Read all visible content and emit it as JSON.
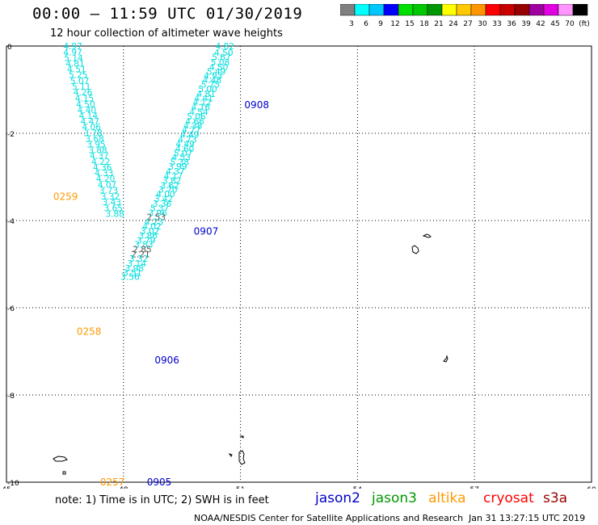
{
  "title": "00:00 – 11:59 UTC 01/30/2019",
  "subtitle": "12 hour collection of altimeter wave heights",
  "color_scale": {
    "colors": [
      "#808080",
      "#00ffff",
      "#00c8ff",
      "#0000ff",
      "#00e000",
      "#00c800",
      "#009600",
      "#ffff00",
      "#ffc800",
      "#ff9600",
      "#ff0000",
      "#c80000",
      "#960000",
      "#a000a0",
      "#e000e0",
      "#ff96ff",
      "#000000"
    ],
    "labels": [
      "3",
      "6",
      "9",
      "12",
      "15",
      "18",
      "21",
      "24",
      "27",
      "30",
      "33",
      "36",
      "39",
      "42",
      "45",
      "70",
      "(ft)"
    ]
  },
  "chart_data": {
    "type": "scatter",
    "title": "00:00 – 11:59 UTC 01/30/2019",
    "xlim": [
      45,
      60
    ],
    "ylim": [
      -10,
      0
    ],
    "x_ticks": [
      "45",
      "48",
      "51",
      "54",
      "57",
      "60"
    ],
    "y_ticks": [
      "0",
      "-2",
      "-4",
      "-6",
      "-8",
      "-10"
    ],
    "grid": true,
    "units": "ft",
    "series": [
      {
        "name": "jason2",
        "color": "#00dddd",
        "points": [
          {
            "x": 50.6,
            "y": 0.0,
            "v": "4.82"
          },
          {
            "x": 50.57,
            "y": -0.15,
            "v": "4.50"
          },
          {
            "x": 50.51,
            "y": -0.25,
            "v": "5.67"
          },
          {
            "x": 50.48,
            "y": -0.37,
            "v": "5.08"
          },
          {
            "x": 50.44,
            "y": -0.48,
            "v": "4.50"
          },
          {
            "x": 50.38,
            "y": -0.58,
            "v": "5.49"
          },
          {
            "x": 50.3,
            "y": -0.68,
            "v": "4.93"
          },
          {
            "x": 50.27,
            "y": -0.78,
            "v": "4.48"
          },
          {
            "x": 50.23,
            "y": -0.88,
            "v": "5.75"
          },
          {
            "x": 50.16,
            "y": -0.98,
            "v": "5.00"
          },
          {
            "x": 50.12,
            "y": -1.09,
            "v": "4.81"
          },
          {
            "x": 50.06,
            "y": -1.19,
            "v": "4.41"
          },
          {
            "x": 50.02,
            "y": -1.29,
            "v": "4.12"
          },
          {
            "x": 49.98,
            "y": -1.4,
            "v": "4.16"
          },
          {
            "x": 49.93,
            "y": -1.51,
            "v": "4.54"
          },
          {
            "x": 49.87,
            "y": -1.61,
            "v": "5.06"
          },
          {
            "x": 49.83,
            "y": -1.72,
            "v": "4.66"
          },
          {
            "x": 49.78,
            "y": -1.82,
            "v": "4.38"
          },
          {
            "x": 49.74,
            "y": -1.92,
            "v": "4.77"
          },
          {
            "x": 49.7,
            "y": -2.03,
            "v": "4.49"
          },
          {
            "x": 49.64,
            "y": -2.14,
            "v": "4.73"
          },
          {
            "x": 49.58,
            "y": -2.24,
            "v": "4.49"
          },
          {
            "x": 49.57,
            "y": -2.35,
            "v": "4.60"
          },
          {
            "x": 49.53,
            "y": -2.45,
            "v": "5.07"
          },
          {
            "x": 49.48,
            "y": -2.55,
            "v": "4.53"
          },
          {
            "x": 49.44,
            "y": -2.66,
            "v": "5.38"
          },
          {
            "x": 49.39,
            "y": -2.76,
            "v": "3.99"
          },
          {
            "x": 49.33,
            "y": -2.87,
            "v": "4.37"
          },
          {
            "x": 49.28,
            "y": -2.97,
            "v": "4.17"
          },
          {
            "x": 49.24,
            "y": -3.08,
            "v": "3.82"
          },
          {
            "x": 49.19,
            "y": -3.19,
            "v": "3.62"
          },
          {
            "x": 49.14,
            "y": -3.29,
            "v": "3.70"
          },
          {
            "x": 49.08,
            "y": -3.39,
            "v": "4.00"
          },
          {
            "x": 49.03,
            "y": -3.5,
            "v": "3.42"
          },
          {
            "x": 48.99,
            "y": -3.61,
            "v": "3.36"
          },
          {
            "x": 48.93,
            "y": -3.71,
            "v": "5.37"
          },
          {
            "x": 48.88,
            "y": -3.82,
            "v": "3.96"
          },
          {
            "x": 48.84,
            "y": -3.92,
            "v": "2.53"
          },
          {
            "x": 48.78,
            "y": -4.03,
            "v": "4.23"
          },
          {
            "x": 48.73,
            "y": -4.13,
            "v": "4.02"
          },
          {
            "x": 48.68,
            "y": -4.24,
            "v": "3.02"
          },
          {
            "x": 48.63,
            "y": -4.34,
            "v": "3.86"
          },
          {
            "x": 48.58,
            "y": -4.45,
            "v": "3.79"
          },
          {
            "x": 48.52,
            "y": -4.55,
            "v": "3.83"
          },
          {
            "x": 48.48,
            "y": -4.66,
            "v": "2.85"
          },
          {
            "x": 48.44,
            "y": -4.77,
            "v": "2.21"
          },
          {
            "x": 48.39,
            "y": -4.87,
            "v": "3.32"
          },
          {
            "x": 48.34,
            "y": -4.98,
            "v": "3.14"
          },
          {
            "x": 48.28,
            "y": -5.09,
            "v": "3.98"
          },
          {
            "x": 48.23,
            "y": -5.19,
            "v": "3.51"
          },
          {
            "x": 48.17,
            "y": -5.29,
            "v": "3.56"
          },
          {
            "x": 46.7,
            "y": 0.0,
            "v": "4.97"
          },
          {
            "x": 46.7,
            "y": -0.14,
            "v": "4.97"
          },
          {
            "x": 46.72,
            "y": -0.27,
            "v": "5.14"
          },
          {
            "x": 46.76,
            "y": -0.4,
            "v": "4.81"
          },
          {
            "x": 46.8,
            "y": -0.53,
            "v": "4.51"
          },
          {
            "x": 46.84,
            "y": -0.66,
            "v": "5.25"
          },
          {
            "x": 46.88,
            "y": -0.8,
            "v": "5.07"
          },
          {
            "x": 46.92,
            "y": -0.93,
            "v": "5.11"
          },
          {
            "x": 46.96,
            "y": -1.06,
            "v": "4.26"
          },
          {
            "x": 47.0,
            "y": -1.19,
            "v": "4.15"
          },
          {
            "x": 47.03,
            "y": -1.33,
            "v": "4.50"
          },
          {
            "x": 47.06,
            "y": -1.46,
            "v": "4.40"
          },
          {
            "x": 47.1,
            "y": -1.59,
            "v": "4.14"
          },
          {
            "x": 47.14,
            "y": -1.72,
            "v": "4.47"
          },
          {
            "x": 47.18,
            "y": -1.85,
            "v": "4.06"
          },
          {
            "x": 47.22,
            "y": -1.99,
            "v": "3.78"
          },
          {
            "x": 47.26,
            "y": -2.12,
            "v": "3.68"
          },
          {
            "x": 47.3,
            "y": -2.25,
            "v": "3.95"
          },
          {
            "x": 47.34,
            "y": -2.38,
            "v": "3.88"
          },
          {
            "x": 47.38,
            "y": -2.51,
            "v": "4.37"
          },
          {
            "x": 47.42,
            "y": -2.65,
            "v": "4.22"
          },
          {
            "x": 47.46,
            "y": -2.78,
            "v": "4.36"
          },
          {
            "x": 47.5,
            "y": -2.91,
            "v": "4.33"
          },
          {
            "x": 47.54,
            "y": -3.04,
            "v": "4.20"
          },
          {
            "x": 47.58,
            "y": -3.18,
            "v": "4.07"
          },
          {
            "x": 47.62,
            "y": -3.31,
            "v": "3.73"
          },
          {
            "x": 47.66,
            "y": -3.44,
            "v": "3.32"
          },
          {
            "x": 47.7,
            "y": -3.57,
            "v": "3.43"
          },
          {
            "x": 47.74,
            "y": -3.71,
            "v": "3.65"
          },
          {
            "x": 47.78,
            "y": -3.84,
            "v": "3.88"
          }
        ]
      }
    ],
    "pass_labels": [
      {
        "text": "0908",
        "x": 51.1,
        "y": -1.35,
        "color": "#0000cc"
      },
      {
        "text": "0907",
        "x": 49.8,
        "y": -4.25,
        "color": "#0000cc"
      },
      {
        "text": "0906",
        "x": 48.8,
        "y": -7.2,
        "color": "#0000cc"
      },
      {
        "text": "0905",
        "x": 48.6,
        "y": -10.0,
        "color": "#0000cc"
      },
      {
        "text": "0259",
        "x": 46.2,
        "y": -3.45,
        "color": "#ff9900"
      },
      {
        "text": "0258",
        "x": 46.8,
        "y": -6.55,
        "color": "#ff9900"
      },
      {
        "text": "0257",
        "x": 47.4,
        "y": -10.0,
        "color": "#ff9900"
      }
    ]
  },
  "footer": {
    "note": "note:  1) Time is in UTC;  2) SWH is in feet",
    "satellites": [
      {
        "name": "jason2",
        "color": "#0000cc"
      },
      {
        "name": "jason3",
        "color": "#009900"
      },
      {
        "name": "altika",
        "color": "#ff9900"
      },
      {
        "name": "cryosat",
        "color": "#ff0000"
      },
      {
        "name": "s3a",
        "color": "#990000"
      }
    ],
    "credit": "NOAA/NESDIS Center for Satellite Applications and Research",
    "stamp": "Jan 31 13:27:15 UTC 2019"
  }
}
